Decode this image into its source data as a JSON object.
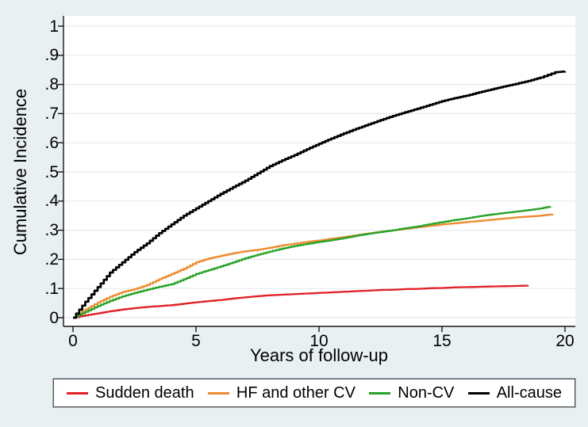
{
  "figure": {
    "background_color": "#e9f0f2",
    "plot_background_color": "#ffffff",
    "grid_color": "#e3ebee",
    "axis_color": "#161616"
  },
  "chart_data": {
    "type": "line",
    "subtype": "step-cumulative-incidence",
    "title": "",
    "xlabel": "Years of follow-up",
    "ylabel": "Cumulative Incidence",
    "xlim": [
      0,
      20
    ],
    "ylim": [
      0,
      1
    ],
    "grid": "horizontal",
    "legend_position": "bottom",
    "xticks": [
      {
        "value": 0,
        "label": "0"
      },
      {
        "value": 5,
        "label": "5"
      },
      {
        "value": 10,
        "label": "10"
      },
      {
        "value": 15,
        "label": "15"
      },
      {
        "value": 20,
        "label": "20"
      }
    ],
    "yticks": [
      {
        "value": 0,
        "label": "0"
      },
      {
        "value": 0.1,
        "label": ".1"
      },
      {
        "value": 0.2,
        "label": ".2"
      },
      {
        "value": 0.3,
        "label": ".3"
      },
      {
        "value": 0.4,
        "label": ".4"
      },
      {
        "value": 0.5,
        "label": ".5"
      },
      {
        "value": 0.6,
        "label": ".6"
      },
      {
        "value": 0.7,
        "label": ".7"
      },
      {
        "value": 0.8,
        "label": ".8"
      },
      {
        "value": 0.9,
        "label": ".9"
      },
      {
        "value": 1,
        "label": "1"
      }
    ],
    "series": [
      {
        "name": "Sudden death",
        "color": "#e02126",
        "stroke_width": 2.3,
        "points": [
          [
            0,
            0
          ],
          [
            0.5,
            0.008
          ],
          [
            1,
            0.015
          ],
          [
            1.5,
            0.022
          ],
          [
            2,
            0.028
          ],
          [
            2.5,
            0.033
          ],
          [
            3,
            0.037
          ],
          [
            3.5,
            0.04
          ],
          [
            4,
            0.043
          ],
          [
            4.5,
            0.048
          ],
          [
            5,
            0.053
          ],
          [
            5.5,
            0.057
          ],
          [
            6,
            0.061
          ],
          [
            6.5,
            0.066
          ],
          [
            7,
            0.07
          ],
          [
            7.5,
            0.074
          ],
          [
            8,
            0.077
          ],
          [
            8.5,
            0.079
          ],
          [
            9,
            0.081
          ],
          [
            9.5,
            0.083
          ],
          [
            10,
            0.085
          ],
          [
            10.5,
            0.087
          ],
          [
            11,
            0.089
          ],
          [
            11.5,
            0.091
          ],
          [
            12,
            0.093
          ],
          [
            12.5,
            0.095
          ],
          [
            13,
            0.096
          ],
          [
            13.5,
            0.098
          ],
          [
            14,
            0.099
          ],
          [
            14.5,
            0.101
          ],
          [
            15,
            0.102
          ],
          [
            15.5,
            0.104
          ],
          [
            16,
            0.105
          ],
          [
            16.5,
            0.106
          ],
          [
            17,
            0.107
          ],
          [
            17.5,
            0.108
          ],
          [
            18,
            0.109
          ],
          [
            18.5,
            0.11
          ]
        ]
      },
      {
        "name": "HF and other CV",
        "color": "#ef8b2e",
        "stroke_width": 2.3,
        "points": [
          [
            0,
            0
          ],
          [
            0.5,
            0.028
          ],
          [
            1,
            0.052
          ],
          [
            1.5,
            0.072
          ],
          [
            2,
            0.088
          ],
          [
            2.5,
            0.098
          ],
          [
            3,
            0.112
          ],
          [
            3.5,
            0.132
          ],
          [
            4,
            0.15
          ],
          [
            4.5,
            0.168
          ],
          [
            5,
            0.19
          ],
          [
            5.5,
            0.203
          ],
          [
            6,
            0.212
          ],
          [
            6.5,
            0.221
          ],
          [
            7,
            0.228
          ],
          [
            7.5,
            0.233
          ],
          [
            8,
            0.24
          ],
          [
            8.5,
            0.248
          ],
          [
            9,
            0.254
          ],
          [
            9.5,
            0.26
          ],
          [
            10,
            0.265
          ],
          [
            10.5,
            0.271
          ],
          [
            11,
            0.277
          ],
          [
            11.5,
            0.283
          ],
          [
            12,
            0.289
          ],
          [
            12.5,
            0.295
          ],
          [
            13,
            0.3
          ],
          [
            13.5,
            0.305
          ],
          [
            14,
            0.31
          ],
          [
            14.5,
            0.315
          ],
          [
            15,
            0.32
          ],
          [
            15.5,
            0.324
          ],
          [
            16,
            0.328
          ],
          [
            16.5,
            0.332
          ],
          [
            17,
            0.336
          ],
          [
            17.5,
            0.34
          ],
          [
            18,
            0.344
          ],
          [
            18.5,
            0.347
          ],
          [
            19,
            0.35
          ],
          [
            19.5,
            0.355
          ]
        ]
      },
      {
        "name": "Non-CV",
        "color": "#26a426",
        "stroke_width": 2.3,
        "points": [
          [
            0,
            0
          ],
          [
            0.5,
            0.02
          ],
          [
            1,
            0.04
          ],
          [
            1.5,
            0.058
          ],
          [
            2,
            0.073
          ],
          [
            2.5,
            0.085
          ],
          [
            3,
            0.096
          ],
          [
            3.5,
            0.106
          ],
          [
            4,
            0.115
          ],
          [
            4.5,
            0.132
          ],
          [
            5,
            0.15
          ],
          [
            5.5,
            0.163
          ],
          [
            6,
            0.176
          ],
          [
            6.5,
            0.19
          ],
          [
            7,
            0.204
          ],
          [
            7.5,
            0.216
          ],
          [
            8,
            0.227
          ],
          [
            8.5,
            0.237
          ],
          [
            9,
            0.246
          ],
          [
            9.5,
            0.253
          ],
          [
            10,
            0.26
          ],
          [
            10.5,
            0.266
          ],
          [
            11,
            0.273
          ],
          [
            11.5,
            0.281
          ],
          [
            12,
            0.288
          ],
          [
            12.5,
            0.294
          ],
          [
            13,
            0.3
          ],
          [
            13.5,
            0.307
          ],
          [
            14,
            0.313
          ],
          [
            14.5,
            0.321
          ],
          [
            15,
            0.328
          ],
          [
            15.5,
            0.335
          ],
          [
            16,
            0.341
          ],
          [
            16.5,
            0.348
          ],
          [
            17,
            0.354
          ],
          [
            17.5,
            0.359
          ],
          [
            18,
            0.364
          ],
          [
            18.5,
            0.369
          ],
          [
            19,
            0.375
          ],
          [
            19.4,
            0.382
          ]
        ]
      },
      {
        "name": "All-cause",
        "color": "#000000",
        "stroke_width": 2.7,
        "points": [
          [
            0,
            0
          ],
          [
            0.5,
            0.055
          ],
          [
            1,
            0.105
          ],
          [
            1.5,
            0.155
          ],
          [
            2,
            0.19
          ],
          [
            2.5,
            0.225
          ],
          [
            3,
            0.255
          ],
          [
            3.5,
            0.29
          ],
          [
            4,
            0.32
          ],
          [
            4.5,
            0.35
          ],
          [
            5,
            0.375
          ],
          [
            5.5,
            0.4
          ],
          [
            6,
            0.425
          ],
          [
            6.5,
            0.448
          ],
          [
            7,
            0.47
          ],
          [
            7.5,
            0.495
          ],
          [
            8,
            0.52
          ],
          [
            8.5,
            0.54
          ],
          [
            9,
            0.558
          ],
          [
            9.5,
            0.578
          ],
          [
            10,
            0.597
          ],
          [
            10.5,
            0.615
          ],
          [
            11,
            0.632
          ],
          [
            11.5,
            0.648
          ],
          [
            12,
            0.663
          ],
          [
            12.5,
            0.678
          ],
          [
            13,
            0.692
          ],
          [
            13.5,
            0.705
          ],
          [
            14,
            0.717
          ],
          [
            14.5,
            0.73
          ],
          [
            15,
            0.743
          ],
          [
            15.5,
            0.753
          ],
          [
            16,
            0.762
          ],
          [
            16.5,
            0.773
          ],
          [
            17,
            0.783
          ],
          [
            17.5,
            0.793
          ],
          [
            18,
            0.802
          ],
          [
            18.5,
            0.812
          ],
          [
            19,
            0.824
          ],
          [
            19.3,
            0.833
          ],
          [
            19.6,
            0.842
          ],
          [
            20,
            0.845
          ]
        ]
      }
    ]
  }
}
